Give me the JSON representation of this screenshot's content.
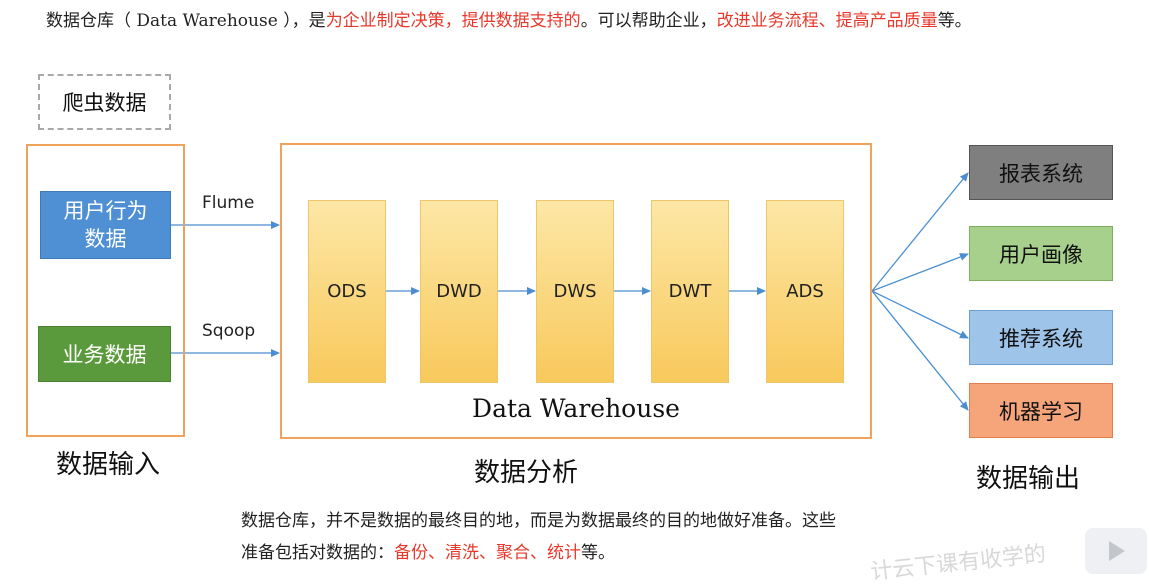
{
  "intro": {
    "p1": "数据仓库（",
    "dw": " Data Warehouse ",
    "p2": "），是",
    "hl1": "为企业制定决策，提供数据支持的",
    "p3": "。可以帮助企业，",
    "hl2": "改进业务流程、提高产品质量",
    "p4": "等。"
  },
  "input": {
    "crawler": "爬虫数据",
    "user_behavior_line1": "用户行为",
    "user_behavior_line2": "数据",
    "business": "业务数据",
    "title": "数据输入"
  },
  "edges": {
    "flume": "Flume",
    "sqoop": "Sqoop"
  },
  "warehouse": {
    "layers": [
      "ODS",
      "DWD",
      "DWS",
      "DWT",
      "ADS"
    ],
    "title": "Data Warehouse",
    "section_title": "数据分析"
  },
  "output": {
    "items": [
      "报表系统",
      "用户画像",
      "推荐系统",
      "机器学习"
    ],
    "title": "数据输出"
  },
  "bottom": {
    "line1": "数据仓库，并不是数据的最终目的地，而是为数据最终的目的地做好准备。这些",
    "line2_prefix": "准备包括对数据的：",
    "line2_hl": "备份、清洗、聚合、统计",
    "line2_suffix": "等。"
  },
  "watermark": "计云下课有收学的"
}
